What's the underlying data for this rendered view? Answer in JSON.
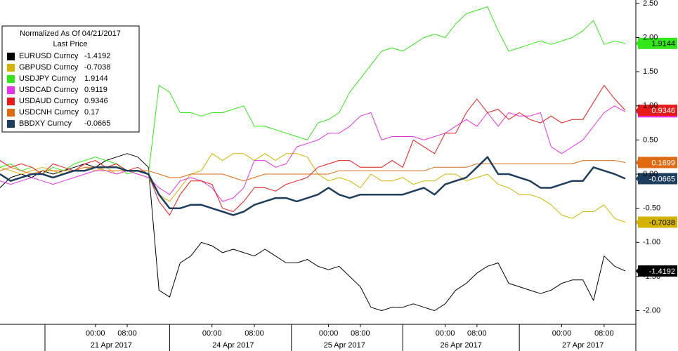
{
  "chart_data": {
    "type": "line",
    "legend_title": "Normalized As Of 04/21/2017",
    "legend_subtitle": "Last Price",
    "categories": [
      null,
      null,
      null,
      null,
      null,
      null,
      null,
      null,
      null,
      "00:00",
      null,
      null,
      "08:00",
      null,
      null,
      null,
      null,
      null,
      null,
      null,
      "00:00",
      null,
      null,
      null,
      "08:00",
      null,
      null,
      null,
      null,
      null,
      null,
      "00:00",
      null,
      null,
      "08:00",
      null,
      null,
      null,
      null,
      null,
      null,
      null,
      "00:00",
      null,
      null,
      "08:00",
      null,
      null,
      null,
      null,
      null,
      null,
      null,
      "00:00",
      null,
      null,
      null,
      "08:00",
      null,
      null
    ],
    "dates": [
      "21 Apr 2017",
      "24 Apr 2017",
      "25 Apr 2017",
      "26 Apr 2017",
      "27 Apr 2017"
    ],
    "ylim": [
      -2.2,
      2.55
    ],
    "yticks": [
      {
        "value": 2.5,
        "label": "2.50"
      },
      {
        "value": 2,
        "label": "2.00"
      },
      {
        "value": 1.5,
        "label": "1.50"
      },
      {
        "value": 1,
        "label": "1.00"
      },
      {
        "value": 0.5,
        "label": "0.50"
      },
      {
        "value": 0,
        "label": "0.00"
      },
      {
        "value": -0.5,
        "label": "-0.50"
      },
      {
        "value": -1,
        "label": "-1.00"
      },
      {
        "value": -1.5,
        "label": "-1.50"
      },
      {
        "value": -2,
        "label": "-2.00"
      }
    ],
    "series": [
      {
        "name": "EURUSD Curncy",
        "legend_value": "-1.4192",
        "color": "#000000",
        "width": 1,
        "values": [
          -0.2,
          -0.05,
          0,
          -0.05,
          0.05,
          0,
          0.05,
          0.1,
          0.15,
          0.1,
          0.2,
          0.25,
          0.3,
          0.25,
          0.1,
          -1.7,
          -1.8,
          -1.3,
          -1.2,
          -1.0,
          -1.05,
          -1.15,
          -1.1,
          -1.15,
          -1.2,
          -1.1,
          -1.2,
          -1.3,
          -1.3,
          -1.25,
          -1.35,
          -1.4,
          -1.35,
          -1.5,
          -1.65,
          -1.95,
          -2.0,
          -1.95,
          -1.95,
          -1.9,
          -1.95,
          -2.0,
          -1.9,
          -1.7,
          -1.6,
          -1.45,
          -1.35,
          -1.3,
          -1.6,
          -1.65,
          -1.7,
          -1.75,
          -1.7,
          -1.6,
          -1.55,
          -1.55,
          -1.85,
          -1.2,
          -1.35,
          -1.4192
        ]
      },
      {
        "name": "GBPUSD Curncy",
        "legend_value": "-0.7038",
        "color": "#d4b300",
        "width": 1,
        "values": [
          0.1,
          0.05,
          0,
          0.05,
          0.1,
          0.05,
          0,
          0.05,
          0.1,
          0.05,
          0.1,
          0,
          0.05,
          0,
          -0.05,
          -0.3,
          -0.4,
          -0.2,
          0,
          0.05,
          0.3,
          0.2,
          0.3,
          0.3,
          0.2,
          0.3,
          0.2,
          0.3,
          0.3,
          0.25,
          0,
          -0.1,
          -0.05,
          -0.1,
          -0.2,
          0,
          -0.1,
          -0.1,
          -0.05,
          -0.15,
          -0.1,
          -0.1,
          0,
          0,
          -0.1,
          -0.05,
          0,
          -0.15,
          -0.2,
          -0.3,
          -0.3,
          -0.35,
          -0.45,
          -0.6,
          -0.65,
          -0.55,
          -0.55,
          -0.45,
          -0.65,
          -0.7038
        ]
      },
      {
        "name": "USDJPY Curncy",
        "legend_value": "1.9144",
        "color": "#33e61a",
        "width": 1,
        "values": [
          0.1,
          0.15,
          0.05,
          0.1,
          0,
          0.1,
          0.05,
          0.15,
          0.2,
          0.25,
          0.2,
          0.15,
          0,
          0.05,
          0,
          1.3,
          1.2,
          0.9,
          0.9,
          0.85,
          0.9,
          0.9,
          0.95,
          1.0,
          0.7,
          0.7,
          0.65,
          0.6,
          0.55,
          0.5,
          0.75,
          0.8,
          0.9,
          1.2,
          1.4,
          1.6,
          1.8,
          1.85,
          1.8,
          1.9,
          2.0,
          2.05,
          2.0,
          2.2,
          2.35,
          2.4,
          2.45,
          2.1,
          1.8,
          1.85,
          1.9,
          1.95,
          1.9,
          1.95,
          2.0,
          2.1,
          2.25,
          1.9,
          1.95,
          1.9144
        ]
      },
      {
        "name": "USDCAD Curncy",
        "legend_value": "0.9119",
        "color": "#e632e6",
        "width": 1,
        "values": [
          -0.1,
          -0.15,
          -0.1,
          -0.05,
          -0.1,
          -0.15,
          -0.1,
          -0.05,
          0,
          0.05,
          0.05,
          0,
          0.05,
          0,
          -0.05,
          -0.2,
          -0.3,
          -0.1,
          -0.05,
          -0.1,
          -0.2,
          -0.4,
          -0.35,
          -0.2,
          0.2,
          0.2,
          0.1,
          0.15,
          0.4,
          0.45,
          0.5,
          0.6,
          0.6,
          0.7,
          0.85,
          0.9,
          0.5,
          0.55,
          0.55,
          0.55,
          0.5,
          0.55,
          0.6,
          0.7,
          0.8,
          0.7,
          0.9,
          0.7,
          0.9,
          0.85,
          0.85,
          0.9,
          0.4,
          0.3,
          0.4,
          0.5,
          0.7,
          0.9,
          1.0,
          0.9119
        ]
      },
      {
        "name": "USDAUD Curncy",
        "legend_value": "0.9346",
        "color": "#e61a1a",
        "width": 1,
        "values": [
          0.2,
          0.1,
          0.15,
          0.1,
          0,
          0.15,
          0.1,
          0.05,
          0.15,
          0.2,
          0.1,
          0.15,
          0.05,
          0.1,
          0,
          -0.4,
          -0.6,
          -0.3,
          -0.1,
          -0.1,
          -0.15,
          -0.5,
          -0.55,
          -0.4,
          -0.2,
          -0.2,
          -0.25,
          -0.15,
          -0.1,
          -0.05,
          0.1,
          0.15,
          0.2,
          0.2,
          0.1,
          0.1,
          0.1,
          0.2,
          0.1,
          0.5,
          0.4,
          0.3,
          0.6,
          0.6,
          0.9,
          1.1,
          0.9,
          0.95,
          0.8,
          0.9,
          0.8,
          0.75,
          0.85,
          0.75,
          0.8,
          0.8,
          1.05,
          1.3,
          1.1,
          0.9346
        ]
      },
      {
        "name": "USDCNH Curncy",
        "legend_value": "0.17",
        "color": "#e06a12",
        "width": 1,
        "values": [
          0.05,
          0.1,
          0.05,
          0,
          0.05,
          0.05,
          0.05,
          0.05,
          0.1,
          0.1,
          0.05,
          0.05,
          0.05,
          0.05,
          0.05,
          0,
          -0.05,
          -0.05,
          0,
          0,
          0,
          0,
          -0.05,
          -0.1,
          -0.05,
          0,
          0,
          0,
          0,
          0,
          0,
          0,
          0.05,
          0.05,
          0.05,
          0.05,
          0.05,
          0.05,
          0.05,
          0.05,
          0.05,
          0.1,
          0.1,
          0.1,
          0.1,
          0.15,
          0.15,
          0.15,
          0.15,
          0.15,
          0.15,
          0.15,
          0.15,
          0.15,
          0.15,
          0.2,
          0.2,
          0.2,
          0.2,
          0.1699
        ]
      },
      {
        "name": "BBDXY Curncy",
        "legend_value": "-0.0665",
        "color": "#1f3d5c",
        "width": 2.5,
        "values": [
          0,
          -0.1,
          -0.05,
          0,
          0,
          -0.05,
          0,
          0.05,
          0.05,
          0.1,
          0.1,
          0.1,
          0.05,
          0.05,
          0,
          -0.3,
          -0.5,
          -0.5,
          -0.45,
          -0.45,
          -0.5,
          -0.55,
          -0.6,
          -0.55,
          -0.45,
          -0.4,
          -0.35,
          -0.35,
          -0.4,
          -0.35,
          -0.3,
          -0.2,
          -0.3,
          -0.35,
          -0.3,
          -0.3,
          -0.3,
          -0.3,
          -0.3,
          -0.25,
          -0.2,
          -0.3,
          -0.15,
          -0.1,
          -0.05,
          0.1,
          0.25,
          0,
          0,
          -0.05,
          -0.1,
          -0.2,
          -0.2,
          -0.15,
          -0.1,
          -0.1,
          0.1,
          0.05,
          0,
          -0.0665
        ]
      }
    ]
  }
}
